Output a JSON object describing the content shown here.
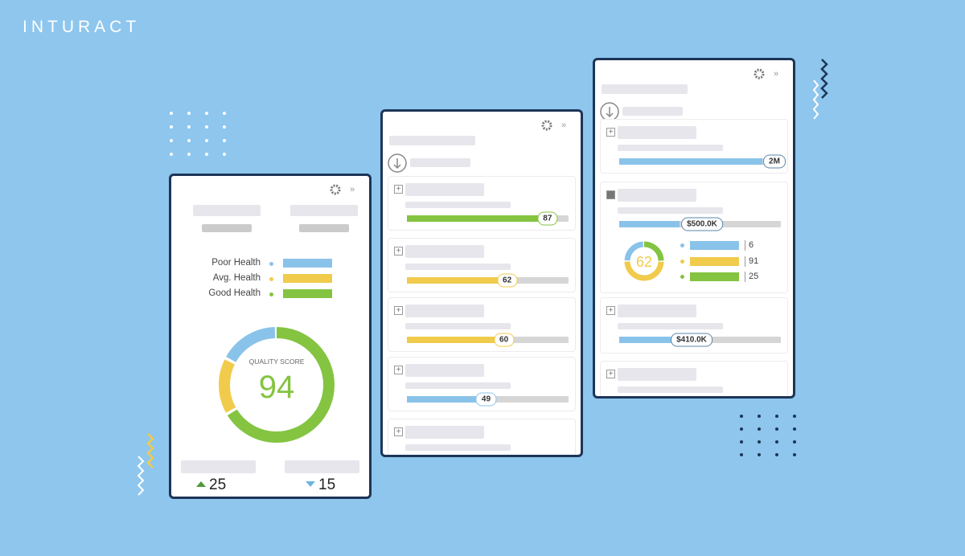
{
  "brand": "INTURACT",
  "health_panel": {
    "legend": [
      {
        "label": "Poor Health",
        "color": "#8ac3ea"
      },
      {
        "label": "Avg. Health",
        "color": "#f0cb4c"
      },
      {
        "label": "Good Health",
        "color": "#84c441"
      }
    ],
    "score_label": "QUALITY SCORE",
    "score": 94,
    "up": 25,
    "down": 15
  },
  "list_panel": {
    "items": [
      {
        "value": 87,
        "color": "#84c441"
      },
      {
        "value": 62,
        "color": "#f0cb4c"
      },
      {
        "value": 60,
        "color": "#f0cb4c"
      },
      {
        "value": 49,
        "color": "#8ac3ea"
      }
    ]
  },
  "detail_panel": {
    "items": [
      {
        "label": "2M"
      },
      {
        "label": "$500.0K"
      },
      {
        "label": "$410.0K"
      }
    ],
    "donut_score": 62,
    "breakdown": [
      6,
      91,
      25
    ]
  }
}
